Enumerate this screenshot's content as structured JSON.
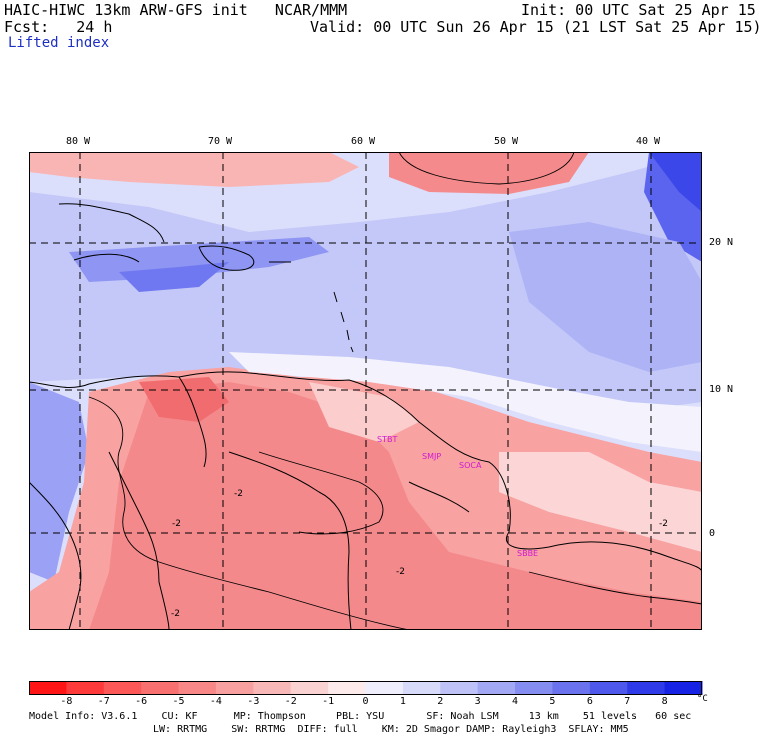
{
  "header": {
    "model_title": "HAIC-HIWC 13km ARW-GFS init   NCAR/MMM",
    "init": "Init: 00 UTC Sat 25 Apr 15",
    "fcst": "Fcst:   24 h",
    "valid": "Valid: 00 UTC Sun 26 Apr 15 (21 LST Sat 25 Apr 15)",
    "field": "Lifted index"
  },
  "map": {
    "lon_labels": [
      "80 W",
      "70 W",
      "60 W",
      "50 W",
      "40 W"
    ],
    "lat_labels": [
      "20 N",
      "10 N",
      "0"
    ],
    "stations": [
      "STBT",
      "SMJP",
      "SOCA",
      "SBBE"
    ],
    "contour_labels": [
      "-2",
      "-2",
      "-2",
      "-2",
      "-2"
    ],
    "colors": {
      "deep_red": "#f6686a",
      "mid_red": "#f9a0a0",
      "light_red": "#fcd0d0",
      "white": "#ffffff",
      "light_blue": "#d6d9fb",
      "mid_blue": "#a9aef7",
      "deep_blue": "#6e76f1",
      "darkest_blue": "#3a45ee",
      "coast": "#000000"
    }
  },
  "colorbar": {
    "ticks": [
      "-8",
      "-7",
      "-6",
      "-5",
      "-4",
      "-3",
      "-2",
      "-1",
      "0",
      "1",
      "2",
      "3",
      "4",
      "5",
      "6",
      "7",
      "8"
    ],
    "unit": "°C",
    "colors": [
      "#ff1515",
      "#ff3a3a",
      "#fd5858",
      "#f97070",
      "#f88888",
      "#f8a0a0",
      "#f9b8b8",
      "#fbd2d2",
      "#fdeaea",
      "#eeeefd",
      "#d8daf9",
      "#bec2f7",
      "#a2a8f4",
      "#868df1",
      "#6a72ee",
      "#4e58eb",
      "#2f3be8",
      "#1622e4"
    ]
  },
  "footer": {
    "line1": "Model Info: V3.6.1    CU: KF      MP: Thompson     PBL: YSU       SF: Noah LSM     13 km    51 levels   60 sec",
    "line2": "LW: RRTMG    SW: RRTMG  DIFF: full    KM: 2D Smagor DAMP: Rayleigh3  SFLAY: MM5"
  }
}
